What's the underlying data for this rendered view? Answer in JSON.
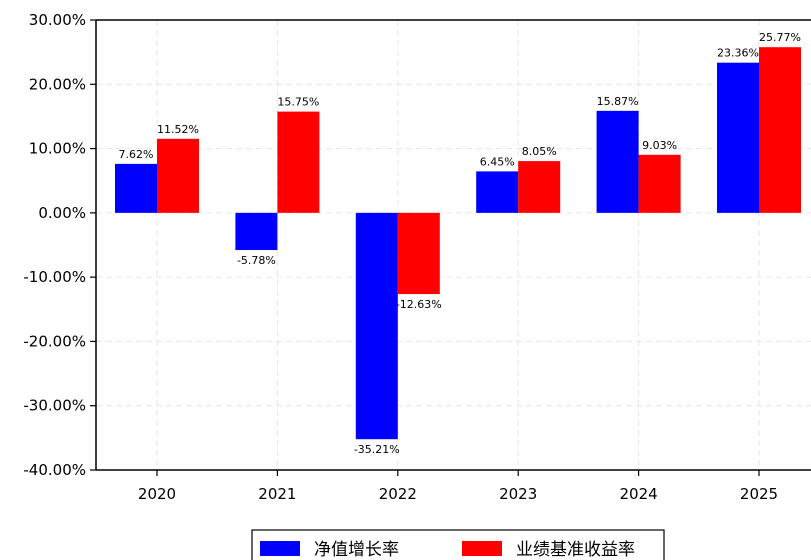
{
  "chart_data": {
    "type": "bar",
    "categories": [
      "2020",
      "2021",
      "2022",
      "2023",
      "2024",
      "2025"
    ],
    "series": [
      {
        "name": "净值增长率",
        "color": "#0000ff",
        "values": [
          7.62,
          -5.78,
          -35.21,
          6.45,
          15.87,
          23.36
        ],
        "labels": [
          "7.62%",
          "-5.78%",
          "-35.21%",
          "6.45%",
          "15.87%",
          "23.36%"
        ]
      },
      {
        "name": "业绩基准收益率",
        "color": "#ff0000",
        "values": [
          11.52,
          15.75,
          -12.63,
          8.05,
          9.03,
          25.77
        ],
        "labels": [
          "11.52%",
          "15.75%",
          "-12.63%",
          "8.05%",
          "9.03%",
          "25.77%"
        ]
      }
    ],
    "yticks": [
      30,
      20,
      10,
      0,
      -10,
      -20,
      -30,
      -40
    ],
    "ytick_labels": [
      "30.00%",
      "20.00%",
      "10.00%",
      "0.00%",
      "-10.00%",
      "-20.00%",
      "-30.00%",
      "-40.00%"
    ],
    "ylim": [
      -40,
      30
    ],
    "grid": true,
    "legend_position": "bottom-center"
  }
}
